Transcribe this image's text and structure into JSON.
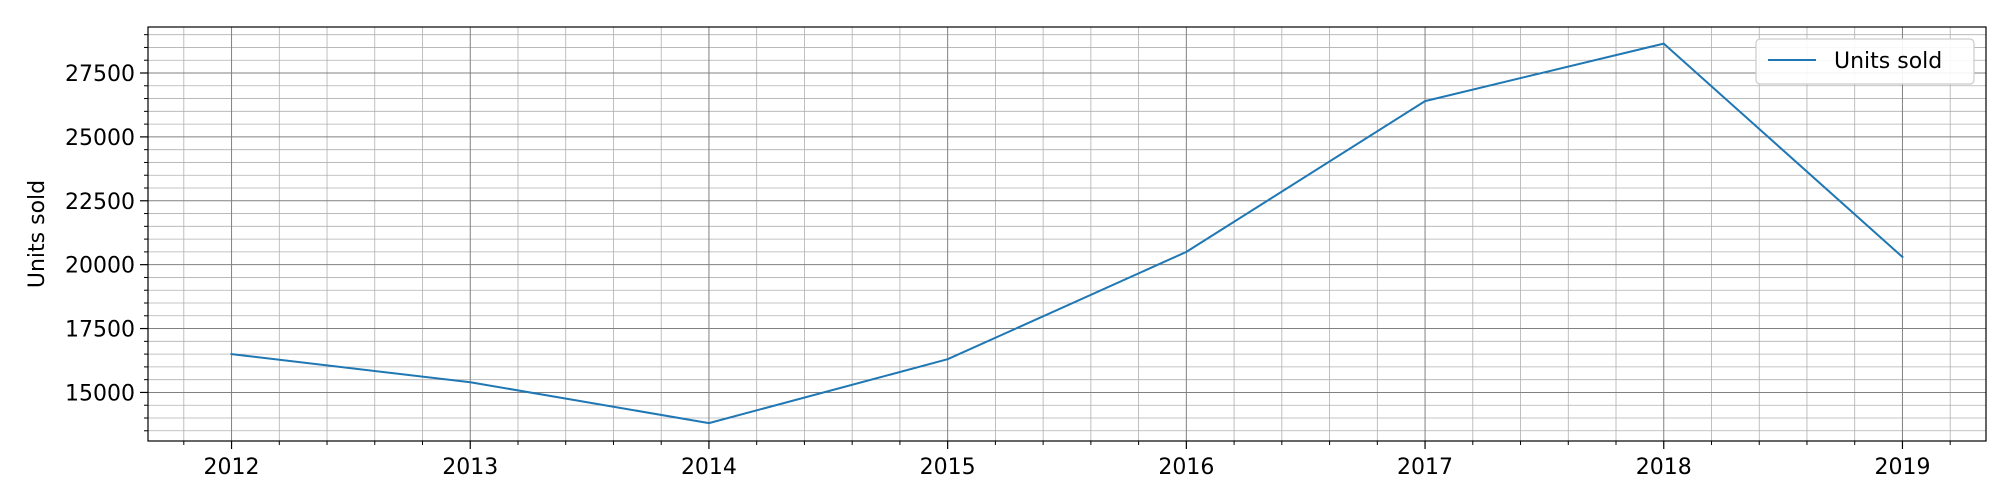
{
  "chart_data": {
    "type": "line",
    "title": "",
    "xlabel": "",
    "ylabel": "Units sold",
    "x": [
      2012,
      2013,
      2014,
      2015,
      2016,
      2017,
      2018,
      2019
    ],
    "series": [
      {
        "name": "Units sold",
        "color": "#1f77b4",
        "values": [
          16500,
          15400,
          13800,
          16300,
          20500,
          26400,
          28650,
          20300
        ]
      }
    ],
    "xlim": [
      2011.65,
      2019.35
    ],
    "ylim": [
      13100,
      29300
    ],
    "xticks": [
      "2012",
      "2013",
      "2014",
      "2015",
      "2016",
      "2017",
      "2018",
      "2019"
    ],
    "yticks": [
      "15000",
      "17500",
      "20000",
      "22500",
      "25000",
      "27500"
    ],
    "grid": true,
    "minor_grid": true,
    "legend_position": "top-right"
  }
}
